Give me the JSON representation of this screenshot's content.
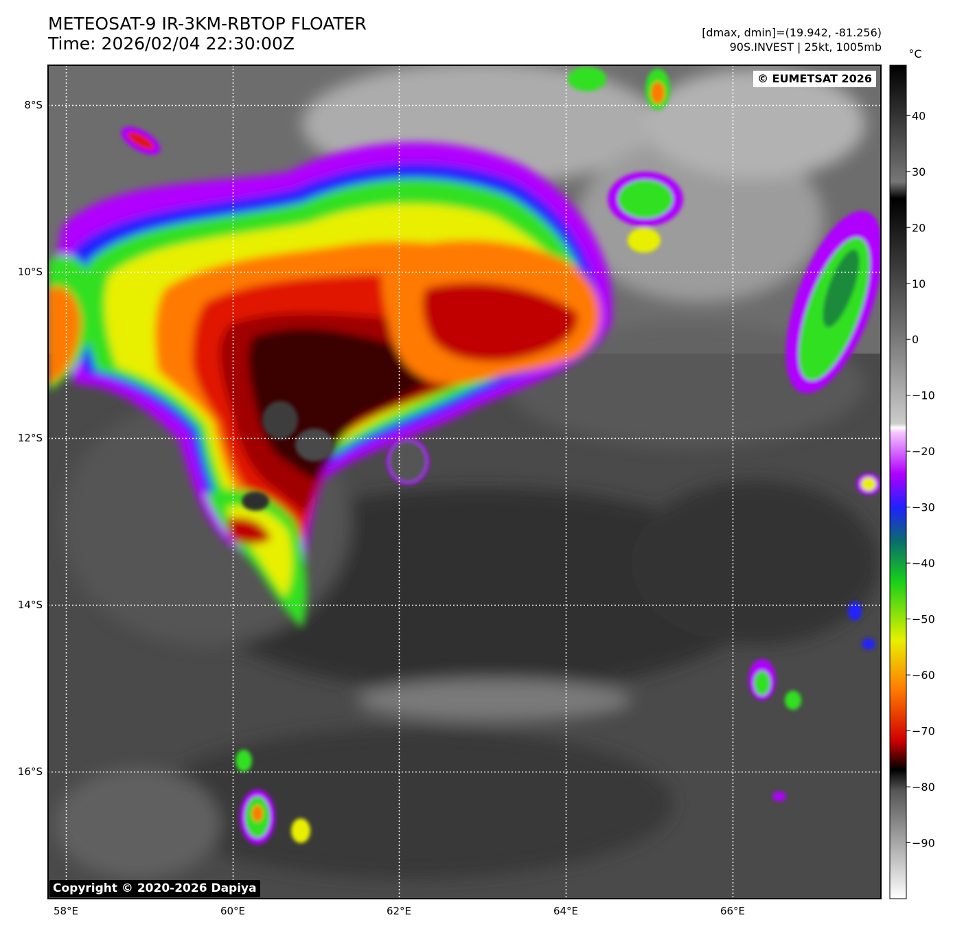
{
  "header": {
    "title_line1": "METEOSAT-9 IR-3KM-RBTOP FLOATER",
    "title_line2": "Time: 2026/02/04 22:30:00Z",
    "meta_line1": "[dmax, dmin]=(19.942, -81.256)",
    "meta_line2": "90S.INVEST | 25kt, 1005mb"
  },
  "map": {
    "lat_labels": [
      "8°S",
      "10°S",
      "12°S",
      "14°S",
      "16°S"
    ],
    "lon_labels": [
      "58°E",
      "60°E",
      "62°E",
      "64°E",
      "66°E"
    ],
    "lon_range": [
      57.8,
      67.8
    ],
    "lat_range": [
      -17.5,
      -7.5
    ],
    "gridlines": "dotted white"
  },
  "colorbar": {
    "unit": "°C",
    "ticks": [
      "40",
      "30",
      "20",
      "10",
      "0",
      "−10",
      "−20",
      "−30",
      "−40",
      "−50",
      "−60",
      "−70",
      "−80",
      "−90"
    ],
    "range": [
      -100,
      49
    ]
  },
  "badges": {
    "eumetsat": "© EUMETSAT 2026",
    "copyright": "Copyright © 2020-2026 Dapiya"
  },
  "colors": {
    "cold_core": "#1a0000",
    "deep_red": "#a00000",
    "red": "#e01800",
    "orange": "#ff7a00",
    "yellow": "#e8f000",
    "green": "#30e020",
    "blue": "#2020ff",
    "purple": "#b000ff",
    "warm_cloud": "#3a3a3a"
  }
}
